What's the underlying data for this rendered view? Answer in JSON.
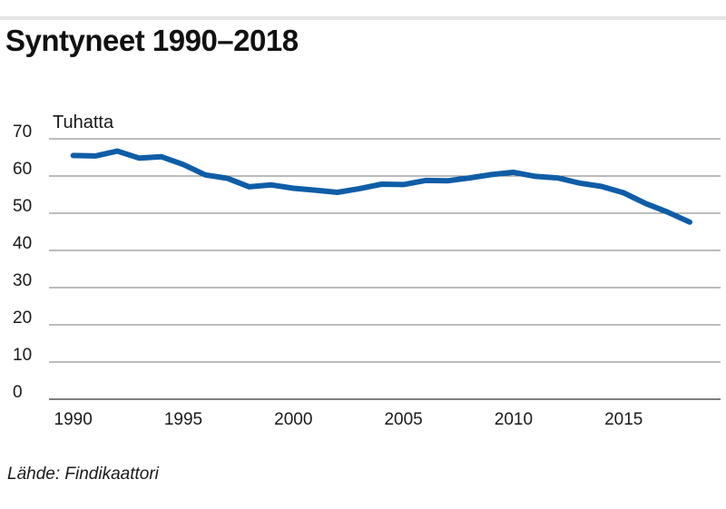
{
  "title": "Syntyneet 1990–2018",
  "source": "Lähde: Findikaattori",
  "colors": {
    "line": "#0f5da7",
    "grid": "#7a7a7a",
    "text": "#1a1a1a",
    "rule": "#e6e6e6"
  },
  "chart_data": {
    "type": "line",
    "title": "Syntyneet 1990–2018",
    "ylabel": "Tuhatta",
    "xlabel": "",
    "ylim": [
      0,
      70
    ],
    "xlim": [
      1990,
      2018
    ],
    "yticks": [
      "0",
      "10",
      "20",
      "30",
      "40",
      "50",
      "60",
      "70"
    ],
    "xticks": [
      "1990",
      "1995",
      "2000",
      "2005",
      "2010",
      "2015"
    ],
    "grid": true,
    "legend": "none",
    "series": [
      {
        "x": [
          1990,
          1991,
          1992,
          1993,
          1994,
          1995,
          1996,
          1997,
          1998,
          1999,
          2000,
          2001,
          2002,
          2003,
          2004,
          2005,
          2006,
          2007,
          2008,
          2009,
          2010,
          2011,
          2012,
          2013,
          2014,
          2015,
          2016,
          2017,
          2018
        ],
        "values": [
          65.5,
          65.4,
          66.7,
          64.8,
          65.2,
          63.1,
          60.3,
          59.4,
          57.1,
          57.6,
          56.7,
          56.2,
          55.6,
          56.6,
          57.8,
          57.7,
          58.8,
          58.7,
          59.5,
          60.4,
          61.0,
          59.9,
          59.5,
          58.1,
          57.2,
          55.5,
          52.6,
          50.3,
          47.6
        ]
      }
    ]
  }
}
